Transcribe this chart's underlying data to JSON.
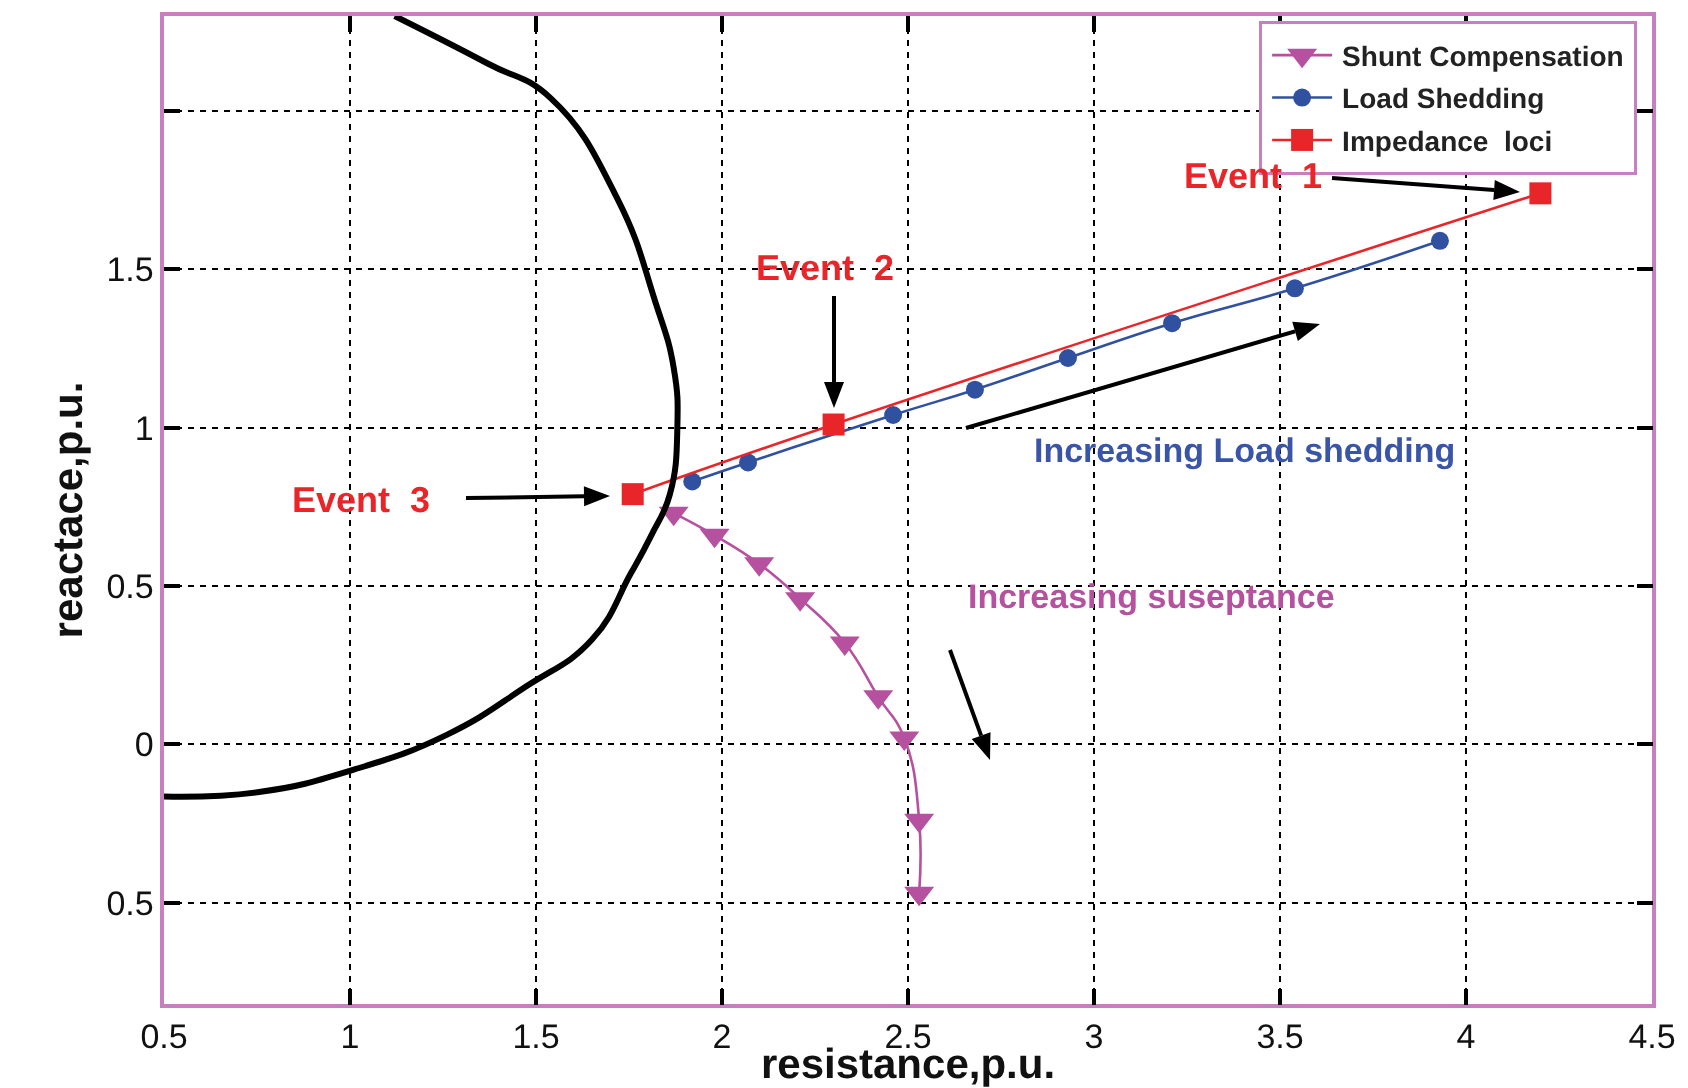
{
  "chart_data": {
    "type": "line",
    "xlabel": "resistance,p.u.",
    "ylabel": "reactace,p.u.",
    "xlim": [
      0.5,
      4.5
    ],
    "ylim": [
      -0.82,
      2.3
    ],
    "xticks": [
      0.5,
      1,
      1.5,
      2,
      2.5,
      3,
      3.5,
      4,
      4.5
    ],
    "yticks": [
      {
        "value": -0.5,
        "label": "0.5"
      },
      0,
      0.5,
      1,
      1.5,
      {
        "value": 2,
        "label": null
      }
    ],
    "grid": true,
    "legend": "top right",
    "series": [
      {
        "name": "Shunt Compensation",
        "color": "#b5519e",
        "marker": "triangle",
        "x": [
          1.87,
          1.98,
          2.1,
          2.21,
          2.33,
          2.42,
          2.49,
          2.53,
          2.53
        ],
        "values": [
          0.73,
          0.66,
          0.57,
          0.46,
          0.32,
          0.15,
          0.02,
          -0.24,
          -0.47
        ]
      },
      {
        "name": "Load Shedding",
        "color": "#3050a0",
        "marker": "circle",
        "x": [
          1.92,
          2.07,
          2.46,
          2.68,
          2.93,
          3.21,
          3.54,
          3.93
        ],
        "values": [
          0.83,
          0.89,
          1.04,
          1.12,
          1.22,
          1.33,
          1.44,
          1.59
        ]
      },
      {
        "name": "Impedance  loci",
        "color": "#e8262a",
        "marker": "square",
        "x": [
          1.76,
          2.3,
          4.2
        ],
        "values": [
          0.79,
          1.01,
          1.74
        ]
      },
      {
        "color": "#000000",
        "marker": "none",
        "x": [
          1.12,
          1.37,
          1.54,
          1.72,
          1.82,
          1.87,
          1.88,
          1.86,
          1.81,
          1.755,
          1.65,
          1.47,
          1.26,
          1.01,
          0.76,
          0.5
        ],
        "values": [
          2.3,
          2.15,
          2.04,
          1.72,
          1.4,
          1.19,
          1.0,
          0.79,
          0.66,
          0.54,
          0.33,
          0.18,
          0.03,
          -0.08,
          -0.15,
          -0.165
        ]
      }
    ],
    "annotations": [
      "Event  1",
      "Event  2",
      "Event  3",
      "Increasing Load shedding",
      "Increasing suseptance"
    ]
  }
}
